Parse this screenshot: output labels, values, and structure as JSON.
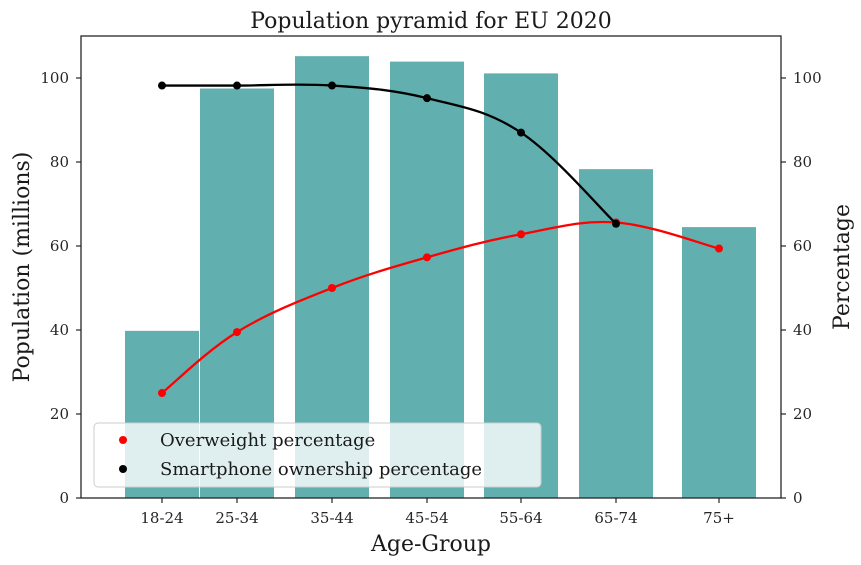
{
  "chart_data": {
    "type": "bar",
    "title": "Population pyramid for EU 2020",
    "xlabel": "Age-Group",
    "ylabel": "Population (millions)",
    "y2label": "Percentage",
    "ylim": [
      0,
      110
    ],
    "y2lim": [
      0,
      110
    ],
    "yticks": [
      "0",
      "20",
      "40",
      "60",
      "80",
      "100"
    ],
    "y2ticks": [
      "0",
      "20",
      "40",
      "60",
      "80",
      "100"
    ],
    "categories": [
      "18-24",
      "25-34",
      "35-44",
      "45-54",
      "55-64",
      "65-74",
      "75+"
    ],
    "bar_series": {
      "name": "Population (millions)",
      "color": "#62afb0",
      "values": [
        39.8,
        97.5,
        105.2,
        103.9,
        101.1,
        78.3,
        64.5
      ]
    },
    "line_series": [
      {
        "name": "Overweight percentage",
        "color": "#ff0000",
        "x": [
          "18-24",
          "25-34",
          "35-44",
          "45-54",
          "55-64",
          "65-74",
          "75+"
        ],
        "values": [
          25.0,
          39.5,
          50.0,
          57.3,
          62.8,
          65.6,
          59.4
        ]
      },
      {
        "name": "Smartphone ownership percentage",
        "color": "#000000",
        "x": [
          "18-24",
          "25-34",
          "35-44",
          "45-54",
          "55-64",
          "65-74"
        ],
        "values": [
          98.2,
          98.2,
          98.2,
          95.2,
          87.0,
          65.3
        ]
      }
    ],
    "legend": {
      "placement": "lower-left",
      "entries": [
        "Overweight percentage",
        "Smartphone ownership percentage"
      ]
    },
    "grid": false
  }
}
